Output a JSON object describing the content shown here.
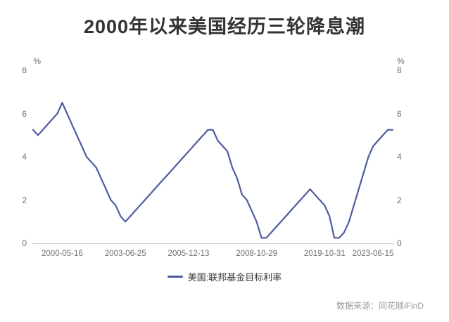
{
  "title": "2000年以来美国经历三轮降息潮",
  "legend": {
    "label": "美国:联邦基金目标利率"
  },
  "source": "数据来源：同花顺iFinD",
  "chart_data": {
    "type": "line",
    "title": "2000年以来美国经历三轮降息潮",
    "series_name": "美国:联邦基金目标利率",
    "unit": "%",
    "line_color": "#4e5b9e",
    "grid": "off",
    "legend_position": "bottom",
    "ylim": [
      0,
      8
    ],
    "y_ticks": [
      0,
      2,
      4,
      6,
      8
    ],
    "x_tick_labels": [
      "2000-05-16",
      "2003-06-25",
      "2005-12-13",
      "2008-10-29",
      "2019-10-31",
      "2023-06-15"
    ],
    "x_tick_indices": [
      6,
      19,
      32,
      46,
      60,
      74
    ],
    "values": [
      5.25,
      5.0,
      5.25,
      5.5,
      5.75,
      6.0,
      6.5,
      6.0,
      5.5,
      5.0,
      4.5,
      4.0,
      3.75,
      3.5,
      3.0,
      2.5,
      2.0,
      1.75,
      1.25,
      1.0,
      1.25,
      1.5,
      1.75,
      2.0,
      2.25,
      2.5,
      2.75,
      3.0,
      3.25,
      3.5,
      3.75,
      4.0,
      4.25,
      4.5,
      4.75,
      5.0,
      5.25,
      5.25,
      4.75,
      4.5,
      4.25,
      3.5,
      3.0,
      2.25,
      2.0,
      1.5,
      1.0,
      0.25,
      0.25,
      0.5,
      0.75,
      1.0,
      1.25,
      1.5,
      1.75,
      2.0,
      2.25,
      2.5,
      2.25,
      2.0,
      1.75,
      1.25,
      0.25,
      0.25,
      0.5,
      1.0,
      1.75,
      2.5,
      3.25,
      4.0,
      4.5,
      4.75,
      5.0,
      5.25,
      5.25
    ]
  }
}
